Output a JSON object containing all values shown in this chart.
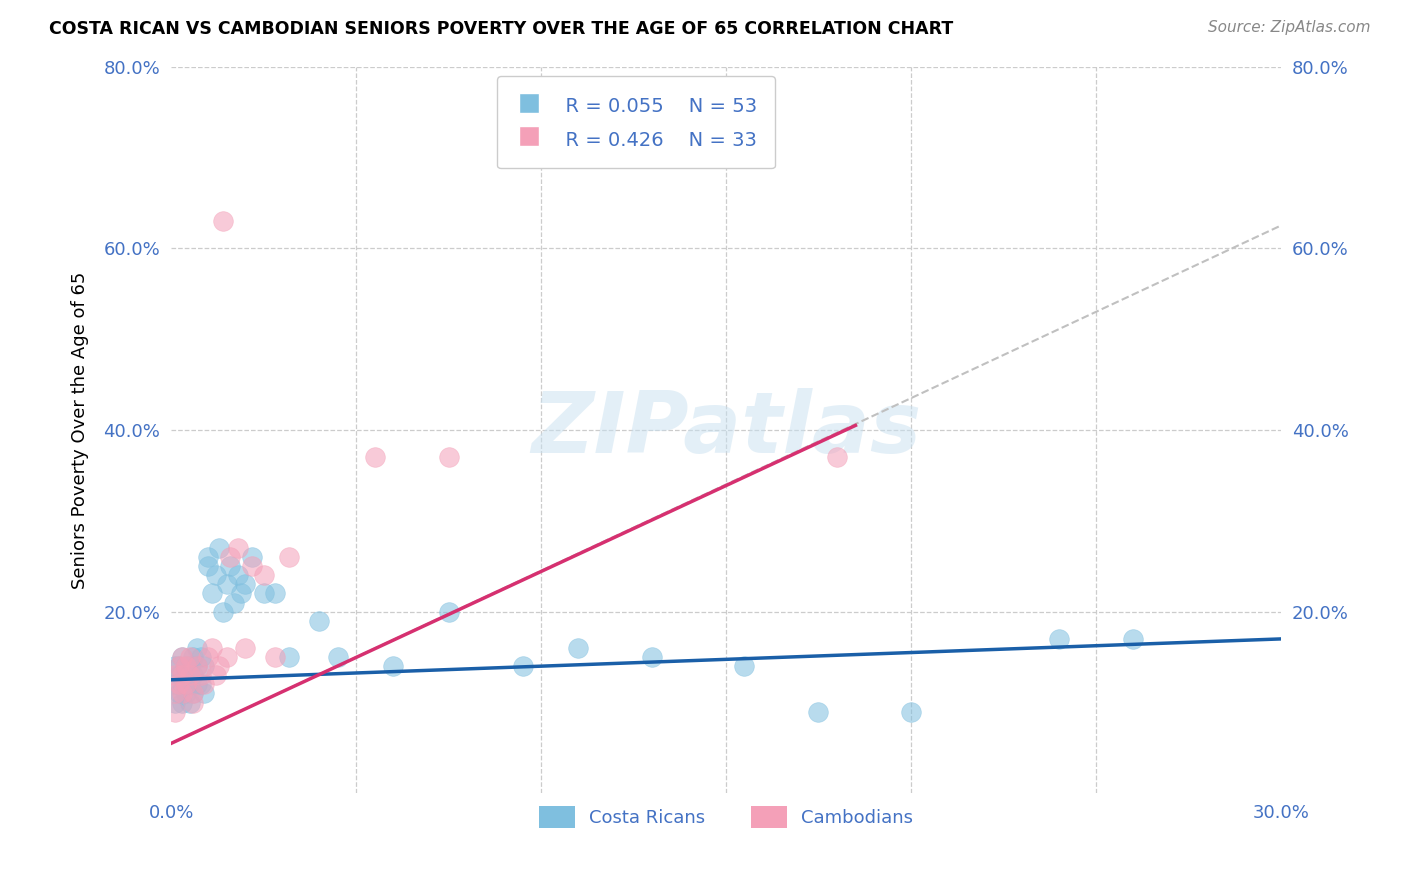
{
  "title": "COSTA RICAN VS CAMBODIAN SENIORS POVERTY OVER THE AGE OF 65 CORRELATION CHART",
  "source": "Source: ZipAtlas.com",
  "ylabel": "Seniors Poverty Over the Age of 65",
  "xlim": [
    0.0,
    0.3
  ],
  "ylim": [
    0.0,
    0.8
  ],
  "blue_color": "#7fbfdf",
  "pink_color": "#f4a0b8",
  "blue_line_color": "#1a5fa8",
  "pink_line_color": "#d63070",
  "dash_line_color": "#c0c0c0",
  "axis_tick_color": "#4472c4",
  "grid_color": "#cccccc",
  "background_color": "#ffffff",
  "watermark_text": "ZIPatlas",
  "watermark_color": "#c8e0f0",
  "legend_label1": "Costa Ricans",
  "legend_label2": "Cambodians",
  "legend_R1": "R = 0.055",
  "legend_N1": "N = 53",
  "legend_R2": "R = 0.426",
  "legend_N2": "N = 33",
  "blue_line_x0": 0.0,
  "blue_line_y0": 0.125,
  "blue_line_x1": 0.3,
  "blue_line_y1": 0.17,
  "pink_line_x0": 0.0,
  "pink_line_y0": 0.055,
  "pink_line_x1": 0.185,
  "pink_line_y1": 0.405,
  "dash_line_x0": 0.0,
  "dash_line_y0": 0.055,
  "dash_line_x1": 0.3,
  "dash_line_y1": 0.625,
  "cr_x": [
    0.001,
    0.001,
    0.001,
    0.002,
    0.002,
    0.002,
    0.003,
    0.003,
    0.003,
    0.004,
    0.004,
    0.004,
    0.005,
    0.005,
    0.005,
    0.006,
    0.006,
    0.006,
    0.007,
    0.007,
    0.007,
    0.008,
    0.008,
    0.009,
    0.009,
    0.01,
    0.01,
    0.011,
    0.012,
    0.013,
    0.014,
    0.015,
    0.016,
    0.017,
    0.018,
    0.019,
    0.02,
    0.022,
    0.025,
    0.028,
    0.032,
    0.04,
    0.045,
    0.06,
    0.075,
    0.095,
    0.11,
    0.13,
    0.155,
    0.175,
    0.2,
    0.24,
    0.26
  ],
  "cr_y": [
    0.14,
    0.12,
    0.1,
    0.14,
    0.13,
    0.11,
    0.15,
    0.12,
    0.1,
    0.14,
    0.13,
    0.11,
    0.14,
    0.12,
    0.1,
    0.15,
    0.13,
    0.11,
    0.16,
    0.14,
    0.12,
    0.15,
    0.12,
    0.14,
    0.11,
    0.26,
    0.25,
    0.22,
    0.24,
    0.27,
    0.2,
    0.23,
    0.25,
    0.21,
    0.24,
    0.22,
    0.23,
    0.26,
    0.22,
    0.22,
    0.15,
    0.19,
    0.15,
    0.14,
    0.2,
    0.14,
    0.16,
    0.15,
    0.14,
    0.09,
    0.09,
    0.17,
    0.17
  ],
  "cam_x": [
    0.001,
    0.001,
    0.001,
    0.002,
    0.002,
    0.003,
    0.003,
    0.003,
    0.004,
    0.004,
    0.005,
    0.005,
    0.006,
    0.006,
    0.007,
    0.008,
    0.009,
    0.01,
    0.011,
    0.012,
    0.013,
    0.014,
    0.015,
    0.016,
    0.018,
    0.02,
    0.022,
    0.025,
    0.028,
    0.032,
    0.055,
    0.075,
    0.18
  ],
  "cam_y": [
    0.13,
    0.11,
    0.09,
    0.14,
    0.12,
    0.15,
    0.13,
    0.11,
    0.14,
    0.12,
    0.15,
    0.13,
    0.11,
    0.1,
    0.14,
    0.13,
    0.12,
    0.15,
    0.16,
    0.13,
    0.14,
    0.63,
    0.15,
    0.26,
    0.27,
    0.16,
    0.25,
    0.24,
    0.15,
    0.26,
    0.37,
    0.37,
    0.37
  ]
}
